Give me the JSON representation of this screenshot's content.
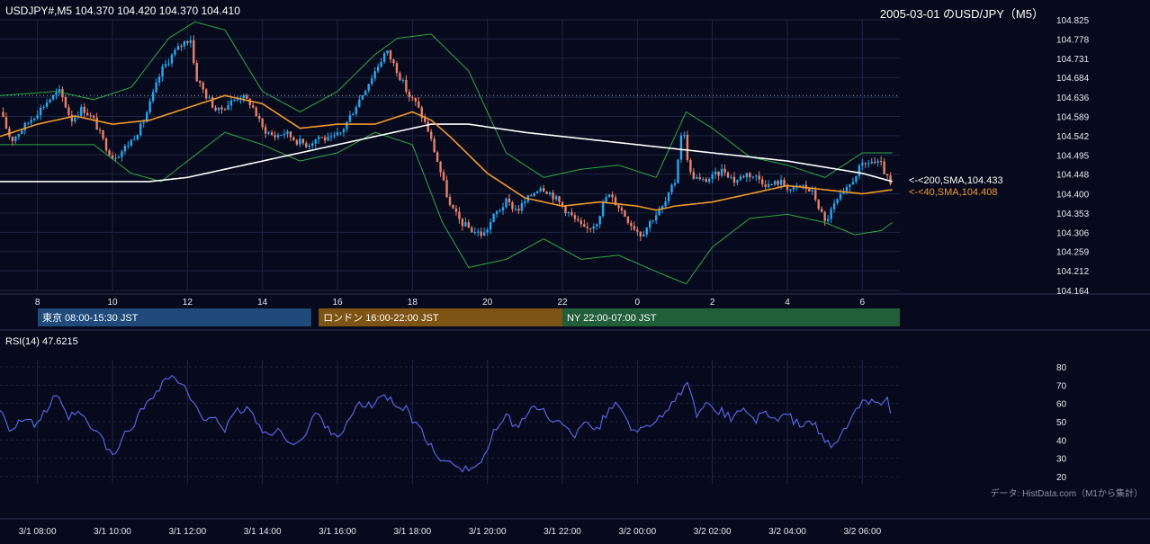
{
  "header": {
    "symbol_line": "USDJPY#,M5 104.370 104.420 104.370 104.410",
    "title": "2005-03-01 のUSD/JPY（M5）"
  },
  "colors": {
    "background": "#070a1c",
    "grid": "#1d2440",
    "candle_up": "#29a7f0",
    "candle_down": "#e8826a",
    "sma40": "#f29a2e",
    "sma200": "#ffffff",
    "bollinger": "#2ea84a",
    "rsi": "#5a6bf0",
    "session_tokyo": "#1f4a7a",
    "session_london": "#7e5414",
    "session_ny": "#215e3a"
  },
  "sessions": [
    {
      "label": "東京 08:00-15:30 JST",
      "color": "#1f4a7a",
      "start_hour": 7.75,
      "end_hour": 15.5
    },
    {
      "label": "ロンドン 16:00-22:00 JST",
      "color": "#7e5414",
      "start_hour": 15.5,
      "end_hour": 22
    },
    {
      "label": "NY 22:00-07:00 JST",
      "color": "#215e3a",
      "start_hour": 22,
      "end_hour": 31
    }
  ],
  "indicator_labels": {
    "sma200": "<-<200,SMA,104.433",
    "sma40": "<-<40,SMA,104.408",
    "rsi_title": "RSI(14) 47.6215",
    "credit": "データ: HistData.com（M1から集計）"
  },
  "chart_data": [
    {
      "type": "candlestick",
      "title": "2005-03-01 のUSD/JPY（M5）",
      "ylim": [
        104.164,
        104.825
      ],
      "y_ticks": [
        "104.825",
        "104.778",
        "104.731",
        "104.684",
        "104.636",
        "104.589",
        "104.542",
        "104.495",
        "104.448",
        "104.400",
        "104.353",
        "104.306",
        "104.259",
        "104.212",
        "104.164"
      ],
      "x_ticks": [
        {
          "label": "8",
          "hour": 8
        },
        {
          "label": "10",
          "hour": 10
        },
        {
          "label": "12",
          "hour": 12
        },
        {
          "label": "14",
          "hour": 14
        },
        {
          "label": "16",
          "hour": 16
        },
        {
          "label": "18",
          "hour": 18
        },
        {
          "label": "20",
          "hour": 20
        },
        {
          "label": "22",
          "hour": 22
        },
        {
          "label": "0",
          "hour": 24
        },
        {
          "label": "2",
          "hour": 26
        },
        {
          "label": "4",
          "hour": 28
        },
        {
          "label": "6",
          "hour": 30
        }
      ],
      "x_range_hours": [
        7.0,
        31.0
      ],
      "reference_line": 104.64,
      "price_path": [
        [
          7.0,
          104.6
        ],
        [
          7.3,
          104.53
        ],
        [
          7.6,
          104.56
        ],
        [
          8.0,
          104.6
        ],
        [
          8.3,
          104.63
        ],
        [
          8.6,
          104.65
        ],
        [
          8.9,
          104.58
        ],
        [
          9.2,
          104.61
        ],
        [
          9.5,
          104.58
        ],
        [
          9.8,
          104.52
        ],
        [
          10.0,
          104.49
        ],
        [
          10.2,
          104.5
        ],
        [
          10.5,
          104.53
        ],
        [
          10.8,
          104.57
        ],
        [
          11.0,
          104.62
        ],
        [
          11.3,
          104.7
        ],
        [
          11.6,
          104.74
        ],
        [
          11.9,
          104.77
        ],
        [
          12.1,
          104.78
        ],
        [
          12.2,
          104.69
        ],
        [
          12.5,
          104.64
        ],
        [
          12.8,
          104.6
        ],
        [
          13.1,
          104.62
        ],
        [
          13.4,
          104.64
        ],
        [
          13.7,
          104.62
        ],
        [
          14.0,
          104.56
        ],
        [
          14.3,
          104.54
        ],
        [
          14.6,
          104.55
        ],
        [
          14.9,
          104.53
        ],
        [
          15.2,
          104.52
        ],
        [
          15.5,
          104.54
        ],
        [
          15.8,
          104.53
        ],
        [
          16.1,
          104.55
        ],
        [
          16.4,
          104.6
        ],
        [
          16.7,
          104.65
        ],
        [
          17.0,
          104.7
        ],
        [
          17.3,
          104.75
        ],
        [
          17.6,
          104.7
        ],
        [
          17.9,
          104.64
        ],
        [
          18.1,
          104.62
        ],
        [
          18.4,
          104.56
        ],
        [
          18.7,
          104.47
        ],
        [
          19.0,
          104.37
        ],
        [
          19.3,
          104.33
        ],
        [
          19.6,
          104.31
        ],
        [
          19.9,
          104.3
        ],
        [
          20.2,
          104.35
        ],
        [
          20.5,
          104.38
        ],
        [
          20.8,
          104.36
        ],
        [
          21.1,
          104.39
        ],
        [
          21.4,
          104.42
        ],
        [
          21.7,
          104.4
        ],
        [
          22.0,
          104.37
        ],
        [
          22.3,
          104.34
        ],
        [
          22.6,
          104.31
        ],
        [
          22.9,
          104.33
        ],
        [
          23.2,
          104.4
        ],
        [
          23.5,
          104.37
        ],
        [
          23.8,
          104.33
        ],
        [
          24.1,
          104.3
        ],
        [
          24.4,
          104.34
        ],
        [
          24.7,
          104.37
        ],
        [
          25.0,
          104.43
        ],
        [
          25.2,
          104.57
        ],
        [
          25.4,
          104.45
        ],
        [
          25.7,
          104.43
        ],
        [
          26.0,
          104.44
        ],
        [
          26.3,
          104.46
        ],
        [
          26.6,
          104.43
        ],
        [
          26.9,
          104.45
        ],
        [
          27.2,
          104.44
        ],
        [
          27.5,
          104.42
        ],
        [
          27.8,
          104.43
        ],
        [
          28.1,
          104.41
        ],
        [
          28.4,
          104.42
        ],
        [
          28.7,
          104.4
        ],
        [
          29.0,
          104.33
        ],
        [
          29.3,
          104.38
        ],
        [
          29.6,
          104.41
        ],
        [
          29.9,
          104.46
        ],
        [
          30.2,
          104.48
        ],
        [
          30.5,
          104.47
        ],
        [
          30.8,
          104.41
        ]
      ],
      "sma40_path": [
        [
          7.0,
          104.54
        ],
        [
          8.0,
          104.57
        ],
        [
          9.0,
          104.59
        ],
        [
          10.0,
          104.57
        ],
        [
          11.0,
          104.58
        ],
        [
          12.0,
          104.61
        ],
        [
          13.0,
          104.64
        ],
        [
          14.0,
          104.62
        ],
        [
          15.0,
          104.56
        ],
        [
          16.0,
          104.57
        ],
        [
          17.0,
          104.57
        ],
        [
          18.0,
          104.6
        ],
        [
          18.5,
          104.58
        ],
        [
          19.0,
          104.54
        ],
        [
          20.0,
          104.45
        ],
        [
          21.0,
          104.39
        ],
        [
          22.0,
          104.37
        ],
        [
          23.0,
          104.38
        ],
        [
          24.0,
          104.37
        ],
        [
          24.5,
          104.36
        ],
        [
          25.0,
          104.37
        ],
        [
          26.0,
          104.38
        ],
        [
          27.0,
          104.4
        ],
        [
          28.0,
          104.42
        ],
        [
          29.0,
          104.41
        ],
        [
          30.0,
          104.4
        ],
        [
          30.8,
          104.41
        ]
      ],
      "sma200_path": [
        [
          7.0,
          104.43
        ],
        [
          9.0,
          104.43
        ],
        [
          11.0,
          104.43
        ],
        [
          12.0,
          104.44
        ],
        [
          13.0,
          104.46
        ],
        [
          15.0,
          104.5
        ],
        [
          16.0,
          104.52
        ],
        [
          17.0,
          104.54
        ],
        [
          18.0,
          104.56
        ],
        [
          18.5,
          104.57
        ],
        [
          19.5,
          104.57
        ],
        [
          21.0,
          104.55
        ],
        [
          22.0,
          104.54
        ],
        [
          24.0,
          104.52
        ],
        [
          26.0,
          104.5
        ],
        [
          28.0,
          104.48
        ],
        [
          30.0,
          104.45
        ],
        [
          30.8,
          104.43
        ]
      ],
      "bb_upper_path": [
        [
          7.0,
          104.64
        ],
        [
          8.5,
          104.65
        ],
        [
          9.5,
          104.63
        ],
        [
          10.5,
          104.66
        ],
        [
          11.5,
          104.78
        ],
        [
          12.2,
          104.82
        ],
        [
          13.0,
          104.8
        ],
        [
          14.0,
          104.65
        ],
        [
          15.0,
          104.6
        ],
        [
          16.0,
          104.65
        ],
        [
          17.0,
          104.74
        ],
        [
          17.6,
          104.78
        ],
        [
          18.5,
          104.79
        ],
        [
          19.5,
          104.7
        ],
        [
          20.5,
          104.5
        ],
        [
          21.5,
          104.44
        ],
        [
          22.5,
          104.46
        ],
        [
          23.5,
          104.47
        ],
        [
          24.5,
          104.44
        ],
        [
          25.3,
          104.6
        ],
        [
          26.0,
          104.56
        ],
        [
          27.0,
          104.49
        ],
        [
          28.0,
          104.47
        ],
        [
          29.0,
          104.44
        ],
        [
          30.0,
          104.5
        ],
        [
          30.8,
          104.5
        ]
      ],
      "bb_lower_path": [
        [
          7.0,
          104.52
        ],
        [
          8.5,
          104.52
        ],
        [
          9.5,
          104.52
        ],
        [
          10.5,
          104.45
        ],
        [
          11.3,
          104.43
        ],
        [
          12.0,
          104.48
        ],
        [
          13.0,
          104.55
        ],
        [
          14.0,
          104.52
        ],
        [
          15.0,
          104.48
        ],
        [
          16.0,
          104.5
        ],
        [
          17.0,
          104.55
        ],
        [
          18.0,
          104.52
        ],
        [
          18.8,
          104.33
        ],
        [
          19.5,
          104.22
        ],
        [
          20.5,
          104.24
        ],
        [
          21.5,
          104.29
        ],
        [
          22.5,
          104.24
        ],
        [
          23.5,
          104.25
        ],
        [
          24.5,
          104.21
        ],
        [
          25.3,
          104.18
        ],
        [
          26.0,
          104.27
        ],
        [
          27.0,
          104.34
        ],
        [
          28.0,
          104.35
        ],
        [
          29.0,
          104.33
        ],
        [
          29.8,
          104.3
        ],
        [
          30.5,
          104.31
        ],
        [
          30.8,
          104.33
        ]
      ]
    },
    {
      "type": "line",
      "title": "RSI(14) 47.6215",
      "ylim": [
        20,
        80
      ],
      "y_ticks": [
        80,
        70,
        60,
        50,
        40,
        30,
        20
      ],
      "x_ticks": [
        {
          "label": "3/1 08:00",
          "hour": 8
        },
        {
          "label": "3/1 10:00",
          "hour": 10
        },
        {
          "label": "3/1 12:00",
          "hour": 12
        },
        {
          "label": "3/1 14:00",
          "hour": 14
        },
        {
          "label": "3/1 16:00",
          "hour": 16
        },
        {
          "label": "3/1 18:00",
          "hour": 18
        },
        {
          "label": "3/1 20:00",
          "hour": 20
        },
        {
          "label": "3/1 22:00",
          "hour": 22
        },
        {
          "label": "3/2 00:00",
          "hour": 24
        },
        {
          "label": "3/2 02:00",
          "hour": 26
        },
        {
          "label": "3/2 04:00",
          "hour": 28
        },
        {
          "label": "3/2 06:00",
          "hour": 30
        }
      ],
      "series": [
        {
          "values_path": [
            [
              7.0,
              58
            ],
            [
              7.3,
              45
            ],
            [
              7.6,
              52
            ],
            [
              7.9,
              48
            ],
            [
              8.2,
              55
            ],
            [
              8.5,
              64
            ],
            [
              8.8,
              52
            ],
            [
              9.1,
              55
            ],
            [
              9.4,
              47
            ],
            [
              9.7,
              42
            ],
            [
              10.0,
              30
            ],
            [
              10.3,
              42
            ],
            [
              10.6,
              50
            ],
            [
              10.9,
              60
            ],
            [
              11.2,
              68
            ],
            [
              11.5,
              75
            ],
            [
              11.8,
              72
            ],
            [
              12.1,
              62
            ],
            [
              12.4,
              50
            ],
            [
              12.7,
              55
            ],
            [
              13.0,
              45
            ],
            [
              13.3,
              55
            ],
            [
              13.6,
              58
            ],
            [
              13.9,
              48
            ],
            [
              14.2,
              42
            ],
            [
              14.5,
              45
            ],
            [
              14.8,
              38
            ],
            [
              15.1,
              40
            ],
            [
              15.4,
              55
            ],
            [
              15.7,
              48
            ],
            [
              16.0,
              42
            ],
            [
              16.3,
              50
            ],
            [
              16.6,
              60
            ],
            [
              16.9,
              58
            ],
            [
              17.2,
              65
            ],
            [
              17.5,
              60
            ],
            [
              17.8,
              58
            ],
            [
              18.1,
              48
            ],
            [
              18.4,
              40
            ],
            [
              18.7,
              28
            ],
            [
              19.0,
              30
            ],
            [
              19.3,
              25
            ],
            [
              19.6,
              24
            ],
            [
              19.9,
              30
            ],
            [
              20.2,
              45
            ],
            [
              20.5,
              52
            ],
            [
              20.8,
              48
            ],
            [
              21.1,
              55
            ],
            [
              21.4,
              58
            ],
            [
              21.7,
              52
            ],
            [
              22.0,
              48
            ],
            [
              22.3,
              42
            ],
            [
              22.6,
              52
            ],
            [
              22.9,
              45
            ],
            [
              23.2,
              55
            ],
            [
              23.5,
              60
            ],
            [
              23.8,
              48
            ],
            [
              24.1,
              45
            ],
            [
              24.4,
              50
            ],
            [
              24.7,
              55
            ],
            [
              25.0,
              60
            ],
            [
              25.3,
              72
            ],
            [
              25.6,
              52
            ],
            [
              25.9,
              60
            ],
            [
              26.2,
              56
            ],
            [
              26.5,
              52
            ],
            [
              26.8,
              58
            ],
            [
              27.1,
              50
            ],
            [
              27.4,
              55
            ],
            [
              27.7,
              50
            ],
            [
              28.0,
              54
            ],
            [
              28.3,
              48
            ],
            [
              28.6,
              52
            ],
            [
              28.9,
              42
            ],
            [
              29.2,
              35
            ],
            [
              29.5,
              45
            ],
            [
              29.8,
              55
            ],
            [
              30.1,
              62
            ],
            [
              30.4,
              58
            ],
            [
              30.7,
              66
            ],
            [
              30.8,
              47.6
            ]
          ]
        }
      ]
    }
  ]
}
